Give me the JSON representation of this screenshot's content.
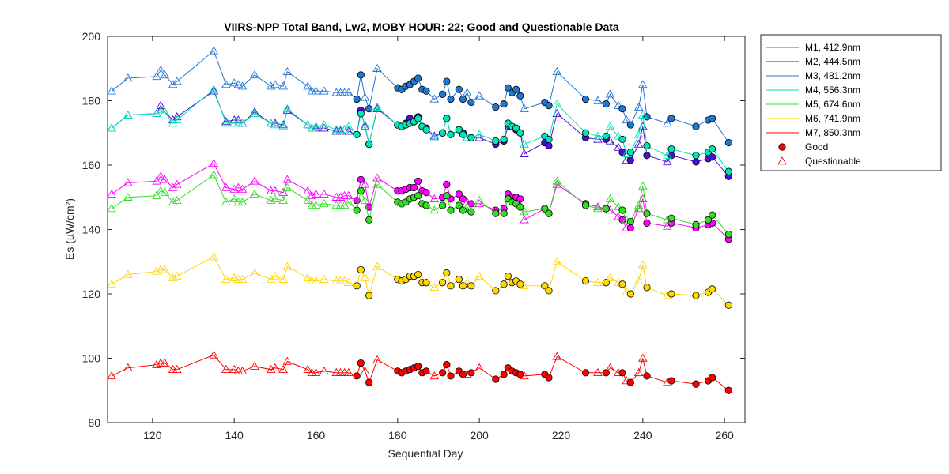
{
  "chart_data": {
    "type": "line",
    "title": "VIIRS-NPP Total Band,  Lw2, MOBY HOUR: 22;  Good and Questionable Data",
    "xlabel": "Sequential Day",
    "ylabel": "Es (µW/cm²)",
    "xlim": [
      109,
      265
    ],
    "ylim": [
      80,
      200
    ],
    "xticks": [
      120,
      140,
      160,
      180,
      200,
      220,
      240,
      260
    ],
    "yticks": [
      80,
      100,
      120,
      140,
      160,
      180,
      200
    ],
    "grid": false,
    "legend_position": "outside-right",
    "x": [
      110,
      114,
      121,
      122,
      123,
      125,
      126,
      135,
      138,
      140,
      141,
      142,
      145,
      149,
      150,
      152,
      153,
      158,
      159,
      160,
      162,
      165,
      166,
      167,
      168,
      170,
      171,
      172,
      173,
      175,
      180,
      181,
      182,
      183,
      184,
      185,
      186,
      187,
      189,
      191,
      192,
      193,
      195,
      196,
      197,
      198,
      200,
      204,
      206,
      207,
      208,
      209,
      210,
      211,
      216,
      217,
      219,
      226,
      229,
      231,
      232,
      234,
      235,
      236,
      237,
      239,
      240,
      241,
      246,
      247,
      253,
      256,
      257,
      261
    ],
    "quality": [
      "Q",
      "Q",
      "Q",
      "Q",
      "Q",
      "Q",
      "Q",
      "Q",
      "Q",
      "Q",
      "Q",
      "Q",
      "Q",
      "Q",
      "Q",
      "Q",
      "Q",
      "Q",
      "Q",
      "Q",
      "Q",
      "Q",
      "Q",
      "Q",
      "Q",
      "G",
      "G",
      "Q",
      "G",
      "Q",
      "G",
      "G",
      "G",
      "G",
      "G",
      "G",
      "G",
      "G",
      "Q",
      "G",
      "G",
      "G",
      "G",
      "G",
      "Q",
      "G",
      "Q",
      "G",
      "G",
      "G",
      "G",
      "G",
      "G",
      "Q",
      "G",
      "G",
      "Q",
      "G",
      "Q",
      "G",
      "Q",
      "Q",
      "G",
      "Q",
      "G",
      "Q",
      "Q",
      "G",
      "Q",
      "G",
      "G",
      "G",
      "G",
      "G"
    ],
    "series": [
      {
        "name": "M1, 412.9nm",
        "color": "#ff00ff",
        "values": [
          151,
          154.5,
          155,
          156.5,
          155.5,
          153,
          154,
          160.5,
          153,
          152.5,
          153,
          152.5,
          155,
          152,
          152,
          151.5,
          155.5,
          152,
          150.5,
          151,
          151,
          150,
          150,
          150.5,
          150.5,
          149,
          155.5,
          154,
          147,
          156,
          152,
          152,
          152.5,
          153,
          153,
          155,
          152,
          151.5,
          149.5,
          150,
          154,
          149.5,
          151,
          149.5,
          148.5,
          148,
          148,
          146,
          146.5,
          151,
          150,
          150,
          149.5,
          143,
          146.5,
          145,
          154,
          148,
          147,
          146.5,
          146,
          144,
          143,
          140.5,
          140.5,
          146.5,
          149.5,
          142,
          141,
          142,
          140.5,
          141.5,
          142,
          137
        ]
      },
      {
        "name": "M2, 444.5nm",
        "color": "#4b0fd6",
        "values": [
          171.5,
          175.5,
          176,
          178.5,
          176.5,
          174,
          175,
          183,
          173.5,
          174,
          174,
          173,
          176.5,
          173,
          173,
          172.5,
          177,
          172.5,
          171.5,
          171.5,
          171.5,
          170.5,
          170.5,
          171,
          170.5,
          169.5,
          177,
          172,
          166.5,
          177.5,
          172.5,
          172,
          173,
          174.5,
          173.5,
          175,
          172,
          171.5,
          169,
          170,
          174.5,
          169.5,
          171,
          170,
          168.5,
          168.5,
          168.5,
          166.5,
          167.5,
          172,
          172,
          171,
          170,
          163.5,
          167,
          166,
          176,
          168.5,
          168,
          168,
          167.5,
          165.5,
          164,
          161.5,
          161.5,
          166.5,
          172,
          163,
          161,
          163,
          161,
          162,
          162.5,
          156.5
        ]
      },
      {
        "name": "M3, 481.2nm",
        "color": "#1f77d4",
        "values": [
          183,
          187,
          187.5,
          189.5,
          188,
          185,
          186,
          195.5,
          185,
          185.5,
          185,
          184.5,
          188,
          184.5,
          185,
          184.5,
          189,
          184.5,
          183,
          183,
          183,
          182.5,
          182.5,
          182.5,
          182.5,
          180.5,
          188,
          181,
          177.5,
          190,
          184,
          183.5,
          184.5,
          185,
          186,
          187,
          183.5,
          183,
          180.5,
          182,
          186,
          180.5,
          183.5,
          180.5,
          182.5,
          179.5,
          181.5,
          178,
          179,
          184,
          182.5,
          183.5,
          181.5,
          177.5,
          179.5,
          178.5,
          189,
          180.5,
          180,
          179,
          182,
          178.5,
          177.5,
          174,
          172.5,
          178,
          185,
          175,
          173,
          174.5,
          172,
          174,
          174.5,
          167
        ]
      },
      {
        "name": "M4, 556.3nm",
        "color": "#00e5b8",
        "values": [
          171.5,
          175.5,
          176,
          176.5,
          176.5,
          173,
          174,
          183.5,
          173,
          173,
          173,
          173,
          176,
          173,
          172.5,
          172,
          177.5,
          172.5,
          171.5,
          172,
          172.5,
          171,
          171,
          171,
          172,
          169.5,
          176,
          172.5,
          166.5,
          178,
          172.5,
          172,
          172.5,
          173,
          173.5,
          174.5,
          172,
          171,
          168.5,
          170,
          174.5,
          169.5,
          171,
          169.5,
          168.5,
          168.5,
          169.5,
          167.5,
          168,
          173,
          172,
          171.5,
          170,
          166.5,
          169,
          168,
          179,
          170,
          169,
          169,
          172,
          169,
          168,
          163.5,
          164,
          169.5,
          175.5,
          166,
          163,
          165,
          163,
          164,
          165,
          158
        ]
      },
      {
        "name": "M5, 674.6nm",
        "color": "#33dd22",
        "values": [
          146.5,
          150,
          150.5,
          152,
          151.5,
          148.5,
          149,
          157,
          148.5,
          149.5,
          148.5,
          148.5,
          151,
          149,
          149.5,
          149,
          153,
          149,
          147.5,
          147.5,
          148,
          147.5,
          147.5,
          147.5,
          148.5,
          146,
          152,
          149,
          143,
          154,
          148.5,
          148,
          148.5,
          149.5,
          150,
          150.5,
          148,
          147.5,
          146,
          147.5,
          150.5,
          146,
          147.5,
          146,
          147,
          145.5,
          149,
          145,
          145,
          149.5,
          148.5,
          148,
          147,
          145.5,
          146.5,
          145,
          155,
          147.5,
          146.5,
          146.5,
          149.5,
          147,
          146,
          143,
          142.5,
          147.5,
          153.5,
          145,
          143,
          143.5,
          141.5,
          143,
          144.5,
          138.5
        ]
      },
      {
        "name": "M6, 741.9nm",
        "color": "#ffd700",
        "values": [
          123,
          126,
          127,
          127.5,
          127.5,
          125,
          125.5,
          131.5,
          124.5,
          125,
          124.5,
          124.5,
          126.5,
          124.5,
          125.5,
          124.5,
          128.5,
          125,
          124,
          124,
          124.5,
          124,
          124,
          124,
          123.5,
          122.5,
          127.5,
          125,
          119.5,
          128.5,
          124.5,
          124,
          124.5,
          125.5,
          125.5,
          126,
          123.5,
          123.5,
          122,
          123.5,
          126.5,
          122.5,
          124.5,
          122.5,
          123.5,
          122.5,
          125.5,
          121,
          123,
          125.5,
          123.5,
          124,
          123,
          122.5,
          122.5,
          121,
          130,
          124,
          123.5,
          123.5,
          125,
          123.5,
          123,
          120.5,
          120,
          124,
          129,
          122,
          119.5,
          120,
          119.5,
          120.5,
          121.5,
          116.5
        ]
      },
      {
        "name": "M7, 850.3nm",
        "color": "#ff0000",
        "values": [
          94.5,
          97,
          98,
          98.5,
          98.5,
          96.5,
          96.5,
          101,
          96.5,
          96.5,
          96,
          96,
          97.5,
          96.5,
          97,
          96.5,
          99,
          96.5,
          95.5,
          95.5,
          96,
          95.5,
          95.5,
          95.5,
          95.5,
          94.5,
          98.5,
          96,
          92.5,
          99.5,
          96,
          95.5,
          96,
          96.5,
          97,
          97.5,
          95.5,
          96,
          94.5,
          95.5,
          98,
          94.5,
          96,
          95,
          95,
          95.5,
          97,
          93.5,
          95,
          97,
          96,
          95.5,
          95,
          94.5,
          95,
          94,
          100.5,
          95.5,
          95.5,
          95.5,
          97,
          95.5,
          95.5,
          93,
          92.5,
          95.5,
          100,
          94.5,
          92.5,
          93,
          92,
          93,
          94,
          90
        ]
      }
    ],
    "legend_markers": [
      {
        "label": "Good",
        "marker": "circle"
      },
      {
        "label": "Questionable",
        "marker": "triangle"
      }
    ]
  }
}
